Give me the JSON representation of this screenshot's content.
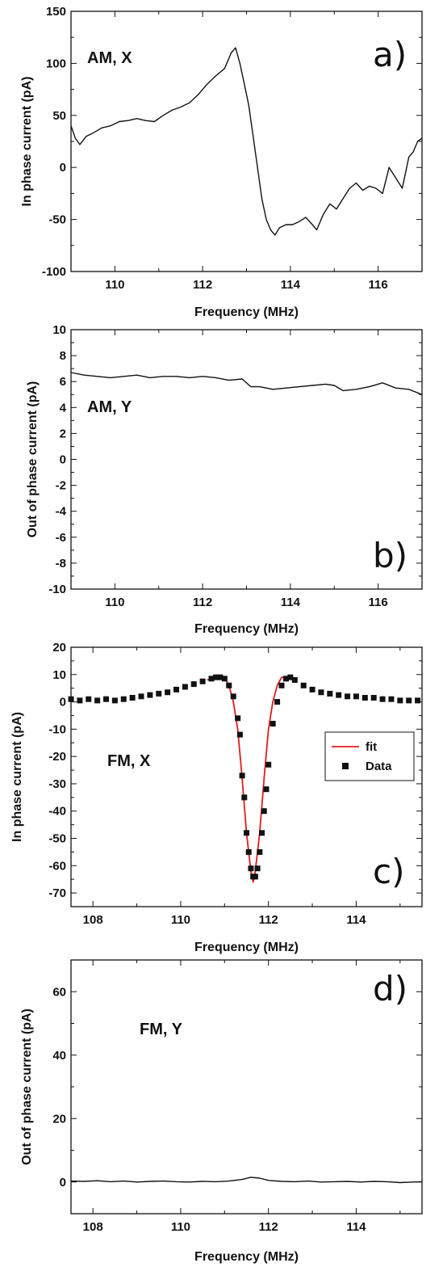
{
  "chart_data": [
    {
      "type": "line",
      "panel_label": "a)",
      "annotation": "AM, X",
      "xlabel": "Frequency (MHz)",
      "ylabel": "In phase current (pA)",
      "xlim": [
        109,
        117
      ],
      "ylim": [
        -100,
        150
      ],
      "xticks": [
        110,
        112,
        114,
        116
      ],
      "yticks": [
        -100,
        -50,
        0,
        50,
        100,
        150
      ],
      "grid": false,
      "series": [
        {
          "style": "line",
          "color": "#111111",
          "x": [
            109.0,
            109.1,
            109.2,
            109.35,
            109.5,
            109.7,
            109.9,
            110.1,
            110.3,
            110.5,
            110.7,
            110.9,
            111.1,
            111.3,
            111.5,
            111.7,
            111.9,
            112.1,
            112.3,
            112.5,
            112.65,
            112.75,
            112.85,
            112.95,
            113.05,
            113.15,
            113.25,
            113.35,
            113.45,
            113.55,
            113.65,
            113.75,
            113.9,
            114.05,
            114.2,
            114.35,
            114.5,
            114.6,
            114.75,
            114.9,
            115.05,
            115.2,
            115.35,
            115.5,
            115.65,
            115.8,
            115.95,
            116.1,
            116.25,
            116.4,
            116.55,
            116.7,
            116.8,
            116.9,
            117.0
          ],
          "y": [
            40,
            28,
            22,
            30,
            33,
            38,
            40,
            44,
            45,
            47,
            45,
            44,
            50,
            55,
            58,
            62,
            70,
            80,
            88,
            95,
            110,
            115,
            100,
            80,
            60,
            30,
            0,
            -30,
            -50,
            -60,
            -65,
            -58,
            -55,
            -55,
            -52,
            -48,
            -55,
            -60,
            -45,
            -35,
            -40,
            -30,
            -20,
            -15,
            -22,
            -18,
            -20,
            -25,
            0,
            -10,
            -20,
            10,
            15,
            25,
            28
          ]
        }
      ]
    },
    {
      "type": "line",
      "panel_label": "b)",
      "annotation": "AM, Y",
      "xlabel": "Frequency (MHz)",
      "ylabel": "Out of phase current (pA)",
      "xlim": [
        109,
        117
      ],
      "ylim": [
        -10,
        10
      ],
      "xticks": [
        110,
        112,
        114,
        116
      ],
      "yticks": [
        -10,
        -8,
        -6,
        -4,
        -2,
        0,
        2,
        4,
        6,
        8,
        10
      ],
      "grid": false,
      "series": [
        {
          "style": "line",
          "color": "#111111",
          "x": [
            109.0,
            109.3,
            109.6,
            109.9,
            110.2,
            110.5,
            110.8,
            111.1,
            111.4,
            111.7,
            112.0,
            112.3,
            112.6,
            112.9,
            113.1,
            113.3,
            113.6,
            113.9,
            114.2,
            114.5,
            114.8,
            115.0,
            115.2,
            115.5,
            115.8,
            116.1,
            116.4,
            116.7,
            117.0
          ],
          "y": [
            6.7,
            6.5,
            6.4,
            6.3,
            6.4,
            6.5,
            6.3,
            6.4,
            6.4,
            6.3,
            6.4,
            6.3,
            6.1,
            6.2,
            5.6,
            5.6,
            5.4,
            5.5,
            5.6,
            5.7,
            5.8,
            5.7,
            5.3,
            5.4,
            5.6,
            5.9,
            5.5,
            5.4,
            5.0
          ]
        }
      ]
    },
    {
      "type": "scatter",
      "panel_label": "c)",
      "annotation": "FM, X",
      "xlabel": "Frequency (MHz)",
      "ylabel": "In phase current (pA)",
      "xlim": [
        107.5,
        115.5
      ],
      "ylim": [
        -75,
        20
      ],
      "xticks": [
        108,
        110,
        112,
        114
      ],
      "yticks": [
        -70,
        -60,
        -50,
        -40,
        -30,
        -20,
        -10,
        0,
        10,
        20
      ],
      "grid": false,
      "legend": {
        "placement": "right",
        "entries": [
          "fit",
          "Data"
        ]
      },
      "series": [
        {
          "name": "fit",
          "style": "line",
          "color": "#e01b1b",
          "x": [
            110.6,
            110.8,
            111.0,
            111.1,
            111.2,
            111.3,
            111.4,
            111.5,
            111.6,
            111.65,
            111.7,
            111.8,
            111.9,
            112.0,
            112.1,
            112.2,
            112.3,
            112.4
          ],
          "y": [
            8,
            9,
            9,
            6,
            0,
            -10,
            -28,
            -48,
            -62,
            -66,
            -62,
            -48,
            -28,
            -10,
            0,
            6,
            9,
            9
          ]
        },
        {
          "name": "Data",
          "style": "marker",
          "color": "#111111",
          "x": [
            107.5,
            107.7,
            107.9,
            108.1,
            108.3,
            108.5,
            108.7,
            108.9,
            109.1,
            109.3,
            109.5,
            109.7,
            109.9,
            110.1,
            110.3,
            110.5,
            110.7,
            110.8,
            110.9,
            111.0,
            111.1,
            111.2,
            111.3,
            111.35,
            111.4,
            111.45,
            111.5,
            111.55,
            111.6,
            111.65,
            111.7,
            111.75,
            111.8,
            111.85,
            111.9,
            111.95,
            112.0,
            112.1,
            112.2,
            112.3,
            112.4,
            112.5,
            112.6,
            112.8,
            113.0,
            113.2,
            113.4,
            113.6,
            113.8,
            114.0,
            114.2,
            114.4,
            114.6,
            114.8,
            115.0,
            115.2,
            115.4
          ],
          "y": [
            1,
            0.5,
            1,
            0.5,
            1,
            0.5,
            1,
            1.5,
            2,
            2.5,
            3,
            3.5,
            4.5,
            5.5,
            6.5,
            7.5,
            8.5,
            9,
            9,
            8.5,
            6,
            2,
            -6,
            -12,
            -27,
            -35,
            -48,
            -55,
            -61,
            -64,
            -64,
            -61,
            -55,
            -48,
            -40,
            -32,
            -23,
            -8,
            0,
            6,
            8.5,
            9,
            8,
            6,
            4.5,
            3.5,
            3,
            2.5,
            2,
            2,
            1.5,
            1.5,
            1,
            1,
            0.5,
            0.5,
            0.5
          ]
        }
      ]
    },
    {
      "type": "line",
      "panel_label": "d)",
      "annotation": "FM, Y",
      "xlabel": "Frequency (MHz)",
      "ylabel": "Out of phase current (pA)",
      "xlim": [
        107.5,
        115.5
      ],
      "ylim": [
        -10,
        70
      ],
      "xticks": [
        108,
        110,
        112,
        114
      ],
      "yticks": [
        0,
        20,
        40,
        60
      ],
      "grid": false,
      "series": [
        {
          "style": "line",
          "color": "#111111",
          "x": [
            107.5,
            107.8,
            108.1,
            108.4,
            108.7,
            109.0,
            109.3,
            109.6,
            109.9,
            110.2,
            110.5,
            110.8,
            111.1,
            111.4,
            111.6,
            111.8,
            112.0,
            112.3,
            112.6,
            112.9,
            113.2,
            113.5,
            113.8,
            114.1,
            114.4,
            114.7,
            115.0,
            115.3,
            115.5
          ],
          "y": [
            0.3,
            0.2,
            0.4,
            0.1,
            0.3,
            0.0,
            0.2,
            0.3,
            0.1,
            0.0,
            0.2,
            0.1,
            0.3,
            0.8,
            1.5,
            1.2,
            0.5,
            0.2,
            0.1,
            0.3,
            0.0,
            0.1,
            0.2,
            0.0,
            0.2,
            0.1,
            -0.2,
            0.0,
            0.1
          ]
        }
      ]
    }
  ]
}
